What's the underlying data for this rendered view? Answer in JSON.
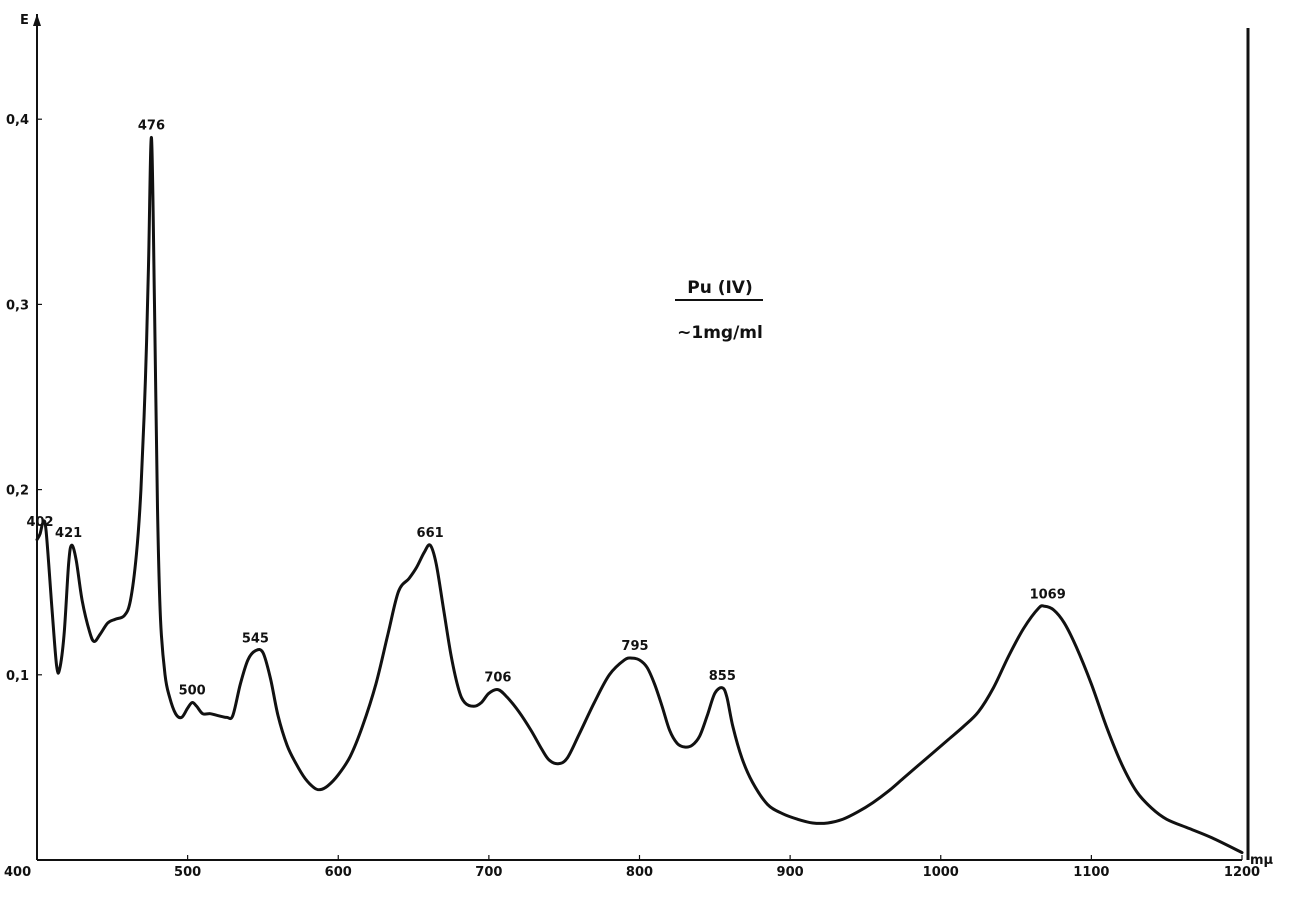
{
  "chart_data": {
    "type": "line",
    "title": "",
    "xlabel": "mμ",
    "ylabel": "E",
    "xlim": [
      400,
      1200
    ],
    "ylim": [
      0,
      0.45
    ],
    "x_ticks": [
      400,
      500,
      600,
      700,
      800,
      900,
      1000,
      1100,
      1200
    ],
    "x_tick_labels": [
      "400",
      "500",
      "600",
      "700",
      "800",
      "900",
      "1000",
      "1100",
      "1200"
    ],
    "y_ticks": [
      0.1,
      0.2,
      0.3,
      0.4
    ],
    "y_tick_labels": [
      "0,1",
      "0,2",
      "0,3",
      "0,4"
    ],
    "grid": false,
    "annotation": {
      "line1": "Pu (IV)",
      "line2": "~1mg/ml"
    },
    "series": [
      {
        "color": "#111111",
        "x": [
          400,
          402,
          404,
          406,
          410,
          413,
          415,
          418,
          421,
          423,
          426,
          430,
          435,
          438,
          442,
          447,
          452,
          458,
          462,
          466,
          469,
          472,
          474,
          476,
          478,
          480,
          482,
          485,
          488,
          492,
          496,
          500,
          503,
          506,
          510,
          515,
          520,
          526,
          530,
          535,
          540,
          545,
          550,
          555,
          560,
          566,
          572,
          578,
          584,
          588,
          593,
          600,
          608,
          616,
          625,
          633,
          640,
          647,
          652,
          657,
          661,
          665,
          670,
          675,
          680,
          684,
          690,
          695,
          700,
          706,
          712,
          720,
          728,
          735,
          740,
          746,
          752,
          760,
          770,
          780,
          790,
          795,
          800,
          805,
          810,
          815,
          820,
          825,
          830,
          835,
          840,
          845,
          850,
          855,
          858,
          862,
          868,
          875,
          885,
          895,
          905,
          915,
          925,
          935,
          945,
          955,
          965,
          975,
          985,
          995,
          1005,
          1015,
          1025,
          1035,
          1045,
          1055,
          1065,
          1069,
          1075,
          1082,
          1090,
          1100,
          1110,
          1120,
          1130,
          1140,
          1150,
          1165,
          1180,
          1200
        ],
        "y": [
          0.173,
          0.176,
          0.182,
          0.178,
          0.135,
          0.105,
          0.103,
          0.122,
          0.16,
          0.17,
          0.162,
          0.14,
          0.123,
          0.118,
          0.122,
          0.128,
          0.13,
          0.132,
          0.14,
          0.165,
          0.2,
          0.26,
          0.32,
          0.39,
          0.3,
          0.19,
          0.13,
          0.1,
          0.088,
          0.079,
          0.077,
          0.082,
          0.085,
          0.083,
          0.079,
          0.079,
          0.078,
          0.077,
          0.078,
          0.095,
          0.108,
          0.113,
          0.112,
          0.098,
          0.078,
          0.062,
          0.052,
          0.044,
          0.039,
          0.038,
          0.04,
          0.046,
          0.056,
          0.072,
          0.095,
          0.122,
          0.145,
          0.152,
          0.158,
          0.166,
          0.17,
          0.16,
          0.135,
          0.11,
          0.092,
          0.085,
          0.083,
          0.085,
          0.09,
          0.092,
          0.088,
          0.08,
          0.07,
          0.06,
          0.054,
          0.052,
          0.055,
          0.068,
          0.085,
          0.1,
          0.108,
          0.109,
          0.108,
          0.104,
          0.095,
          0.083,
          0.07,
          0.063,
          0.061,
          0.062,
          0.067,
          0.078,
          0.09,
          0.093,
          0.088,
          0.072,
          0.055,
          0.042,
          0.03,
          0.025,
          0.022,
          0.02,
          0.02,
          0.022,
          0.026,
          0.031,
          0.037,
          0.044,
          0.051,
          0.058,
          0.065,
          0.072,
          0.08,
          0.093,
          0.11,
          0.125,
          0.136,
          0.137,
          0.135,
          0.128,
          0.115,
          0.095,
          0.072,
          0.052,
          0.037,
          0.028,
          0.022,
          0.017,
          0.012,
          0.004
        ]
      }
    ],
    "peaks": [
      {
        "label": "402",
        "x": 402,
        "y": 0.176
      },
      {
        "label": "421",
        "x": 421,
        "y": 0.17
      },
      {
        "label": "476",
        "x": 476,
        "y": 0.39
      },
      {
        "label": "500",
        "x": 503,
        "y": 0.085
      },
      {
        "label": "545",
        "x": 545,
        "y": 0.113
      },
      {
        "label": "661",
        "x": 661,
        "y": 0.17
      },
      {
        "label": "706",
        "x": 706,
        "y": 0.092
      },
      {
        "label": "795",
        "x": 797,
        "y": 0.109
      },
      {
        "label": "855",
        "x": 855,
        "y": 0.093
      },
      {
        "label": "1069",
        "x": 1071,
        "y": 0.137
      }
    ]
  }
}
